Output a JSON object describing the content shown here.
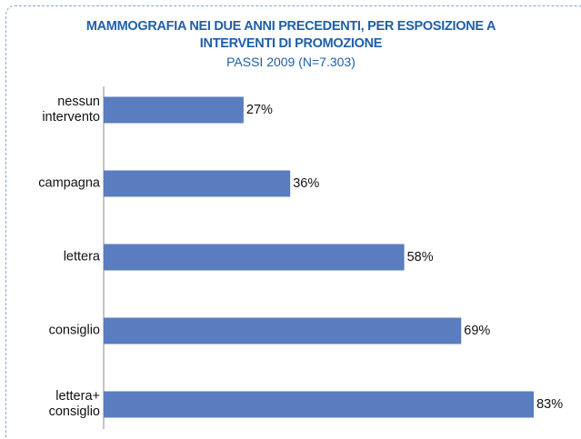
{
  "chart_data": {
    "type": "bar",
    "orientation": "horizontal",
    "title": "MAMMOGRAFIA NEI DUE ANNI PRECEDENTI, PER ESPOSIZIONE A INTERVENTI DI PROMOZIONE",
    "subtitle": "PASSI 2009 (N=7.303)",
    "categories": [
      "nessun intervento",
      "campagna",
      "lettera",
      "consiglio",
      "lettera+ consiglio"
    ],
    "values": [
      27,
      36,
      58,
      69,
      83
    ],
    "value_labels": [
      "27%",
      "36%",
      "58%",
      "69%",
      "83%"
    ],
    "color": "#5a7dbf"
  }
}
